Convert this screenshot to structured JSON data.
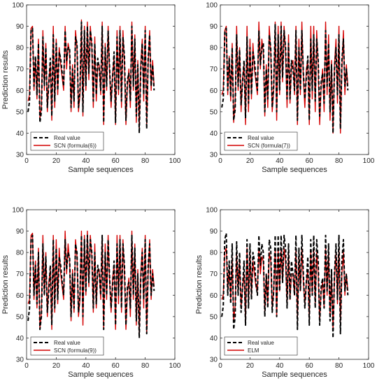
{
  "chart_data": [
    {
      "type": "line",
      "xlabel": "Sample sequences",
      "ylabel": "Prediction results",
      "xlim": [
        0,
        100
      ],
      "ylim": [
        30,
        100
      ],
      "xticks": [
        0,
        20,
        40,
        60,
        80,
        100
      ],
      "yticks": [
        30,
        40,
        50,
        60,
        70,
        80,
        90,
        100
      ],
      "legend_position": "bottom-left",
      "series": [
        {
          "name": "Real value",
          "style": "dashed",
          "color": "#000000",
          "values": [
            50,
            55,
            88,
            89,
            62,
            76,
            58,
            82,
            45,
            50,
            85,
            62,
            80,
            52,
            63,
            75,
            48,
            86,
            55,
            82,
            60,
            78,
            75,
            68,
            62,
            88,
            74,
            80,
            80,
            52,
            70,
            55,
            85,
            82,
            52,
            60,
            92,
            50,
            88,
            62,
            90,
            68,
            88,
            82,
            55,
            82,
            58,
            75,
            70,
            60,
            90,
            45,
            80,
            62,
            88,
            70,
            55,
            66,
            78,
            45,
            85,
            60,
            88,
            55,
            85,
            76,
            46,
            65,
            68,
            55,
            90,
            62,
            84,
            48,
            72,
            40,
            70,
            82,
            58,
            88,
            42,
            75,
            86,
            62,
            72,
            60
          ]
        },
        {
          "name": "SCN (formula(6))",
          "style": "solid",
          "color": "#d40000",
          "values": [
            55,
            58,
            89,
            90,
            60,
            75,
            56,
            84,
            47,
            52,
            88,
            60,
            82,
            50,
            65,
            72,
            46,
            90,
            52,
            84,
            58,
            80,
            72,
            66,
            60,
            90,
            70,
            82,
            78,
            50,
            72,
            52,
            88,
            80,
            50,
            58,
            93,
            48,
            90,
            60,
            92,
            65,
            90,
            80,
            52,
            85,
            55,
            72,
            72,
            58,
            92,
            44,
            82,
            60,
            90,
            68,
            52,
            68,
            75,
            44,
            88,
            58,
            90,
            52,
            88,
            72,
            44,
            62,
            70,
            52,
            92,
            60,
            86,
            45,
            74,
            42,
            72,
            84,
            55,
            90,
            44,
            72,
            88,
            60,
            74,
            62
          ]
        }
      ]
    },
    {
      "type": "line",
      "xlabel": "Sample sequences",
      "ylabel": "",
      "xlim": [
        0,
        100
      ],
      "ylim": [
        30,
        100
      ],
      "xticks": [
        0,
        20,
        40,
        60,
        80,
        100
      ],
      "yticks": [
        30,
        40,
        50,
        60,
        70,
        80,
        90,
        100
      ],
      "legend_position": "bottom-left",
      "series": [
        {
          "name": "Real value",
          "style": "dashed",
          "color": "#000000",
          "values": [
            52,
            56,
            87,
            89,
            60,
            75,
            57,
            80,
            46,
            51,
            86,
            62,
            79,
            53,
            64,
            74,
            47,
            85,
            54,
            80,
            58,
            78,
            74,
            66,
            60,
            88,
            72,
            80,
            82,
            50,
            70,
            56,
            86,
            80,
            52,
            62,
            91,
            50,
            86,
            60,
            90,
            66,
            88,
            80,
            56,
            82,
            56,
            74,
            70,
            60,
            88,
            46,
            80,
            60,
            88,
            68,
            56,
            66,
            76,
            46,
            84,
            60,
            86,
            55,
            84,
            74,
            48,
            64,
            68,
            54,
            88,
            62,
            82,
            50,
            72,
            40,
            70,
            80,
            58,
            86,
            42,
            74,
            84,
            62,
            70,
            60
          ]
        },
        {
          "name": "SCN (formula(7))",
          "style": "solid",
          "color": "#d40000",
          "values": [
            58,
            60,
            88,
            90,
            58,
            76,
            55,
            82,
            45,
            54,
            90,
            60,
            80,
            50,
            66,
            72,
            44,
            90,
            50,
            84,
            56,
            82,
            70,
            64,
            58,
            92,
            70,
            84,
            78,
            48,
            72,
            52,
            90,
            78,
            50,
            60,
            92,
            46,
            90,
            58,
            92,
            64,
            90,
            78,
            52,
            86,
            54,
            72,
            74,
            58,
            90,
            44,
            84,
            58,
            92,
            66,
            52,
            70,
            74,
            44,
            90,
            56,
            90,
            50,
            88,
            70,
            44,
            62,
            70,
            50,
            92,
            58,
            86,
            46,
            74,
            40,
            72,
            84,
            54,
            90,
            40,
            70,
            88,
            58,
            72,
            62
          ]
        }
      ]
    },
    {
      "type": "line",
      "xlabel": "Sample sequences",
      "ylabel": "Prediction results",
      "xlim": [
        0,
        100
      ],
      "ylim": [
        30,
        100
      ],
      "xticks": [
        0,
        20,
        40,
        60,
        80,
        100
      ],
      "yticks": [
        30,
        40,
        50,
        60,
        70,
        80,
        90,
        100
      ],
      "legend_position": "bottom-left",
      "series": [
        {
          "name": "Real value",
          "style": "dashed",
          "color": "#000000",
          "values": [
            48,
            54,
            86,
            88,
            60,
            74,
            56,
            80,
            44,
            50,
            84,
            60,
            78,
            52,
            62,
            74,
            46,
            86,
            54,
            82,
            58,
            78,
            74,
            66,
            60,
            86,
            72,
            80,
            78,
            50,
            70,
            54,
            84,
            80,
            52,
            60,
            88,
            50,
            86,
            62,
            88,
            66,
            86,
            80,
            54,
            80,
            56,
            74,
            70,
            60,
            88,
            44,
            80,
            60,
            86,
            68,
            54,
            64,
            76,
            46,
            84,
            60,
            86,
            54,
            84,
            74,
            46,
            64,
            66,
            54,
            88,
            60,
            82,
            48,
            70,
            40,
            68,
            80,
            58,
            86,
            42,
            74,
            84,
            60,
            70,
            62
          ]
        },
        {
          "name": "SCN (formula(9))",
          "style": "solid",
          "color": "#d40000",
          "values": [
            56,
            58,
            88,
            89,
            58,
            76,
            54,
            82,
            44,
            52,
            88,
            60,
            80,
            50,
            66,
            72,
            44,
            88,
            52,
            86,
            56,
            82,
            70,
            64,
            58,
            90,
            70,
            84,
            76,
            48,
            72,
            52,
            86,
            78,
            50,
            58,
            90,
            46,
            88,
            60,
            90,
            64,
            88,
            78,
            52,
            84,
            54,
            72,
            72,
            58,
            88,
            44,
            84,
            58,
            88,
            66,
            52,
            68,
            74,
            44,
            88,
            56,
            88,
            52,
            86,
            70,
            44,
            62,
            68,
            50,
            90,
            58,
            84,
            46,
            72,
            42,
            70,
            82,
            54,
            88,
            42,
            70,
            86,
            58,
            72,
            64
          ]
        }
      ]
    },
    {
      "type": "line",
      "xlabel": "Sample sequences",
      "ylabel": "Prediction results",
      "xlim": [
        0,
        100
      ],
      "ylim": [
        30,
        100
      ],
      "xticks": [
        0,
        20,
        40,
        60,
        80,
        100
      ],
      "yticks": [
        30,
        40,
        50,
        60,
        70,
        80,
        90,
        100
      ],
      "legend_position": "bottom-left",
      "series": [
        {
          "name": "Real value",
          "style": "dashed",
          "color": "#000000",
          "values": [
            50,
            55,
            86,
            89,
            60,
            76,
            56,
            84,
            44,
            50,
            85,
            60,
            80,
            52,
            64,
            76,
            46,
            86,
            54,
            84,
            58,
            80,
            76,
            66,
            60,
            88,
            74,
            84,
            80,
            50,
            70,
            54,
            86,
            82,
            52,
            62,
            88,
            50,
            88,
            62,
            88,
            66,
            88,
            82,
            54,
            84,
            58,
            76,
            70,
            60,
            88,
            44,
            82,
            62,
            88,
            70,
            54,
            66,
            78,
            46,
            86,
            60,
            88,
            54,
            86,
            76,
            46,
            64,
            68,
            54,
            88,
            62,
            84,
            48,
            72,
            40,
            70,
            84,
            58,
            88,
            42,
            76,
            86,
            62,
            70,
            60
          ]
        },
        {
          "name": "ELM",
          "style": "solid",
          "color": "#d40000",
          "values": [
            58,
            60,
            80,
            82,
            62,
            72,
            58,
            78,
            48,
            55,
            80,
            62,
            76,
            54,
            64,
            70,
            48,
            82,
            56,
            80,
            60,
            76,
            70,
            64,
            62,
            82,
            70,
            78,
            76,
            52,
            70,
            56,
            80,
            76,
            54,
            62,
            82,
            50,
            82,
            62,
            82,
            66,
            82,
            76,
            56,
            80,
            58,
            70,
            70,
            60,
            82,
            48,
            78,
            62,
            82,
            66,
            56,
            66,
            72,
            48,
            80,
            60,
            82,
            56,
            80,
            70,
            48,
            62,
            66,
            54,
            82,
            60,
            80,
            50,
            70,
            44,
            68,
            80,
            56,
            82,
            46,
            70,
            80,
            60,
            70,
            62
          ]
        }
      ]
    }
  ]
}
